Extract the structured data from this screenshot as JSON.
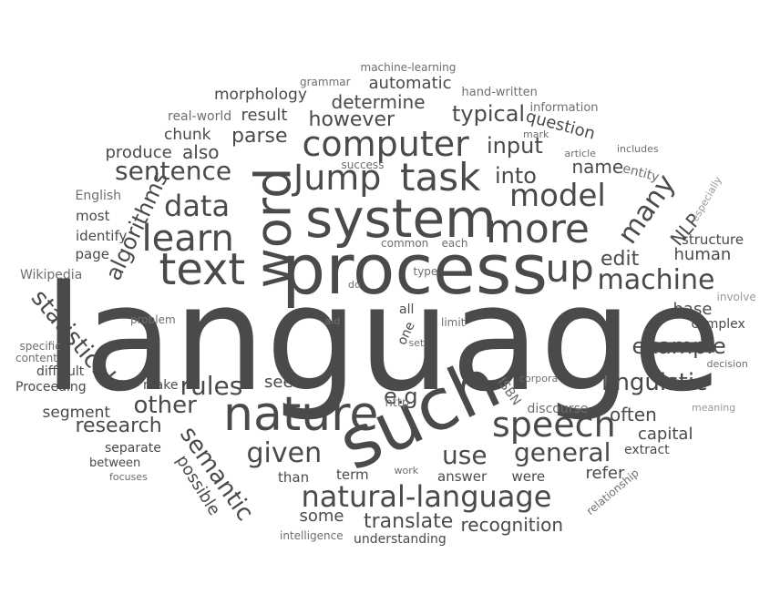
{
  "colors": {
    "background": "#ffffff",
    "dark": "#4a4a4a",
    "mid": "#6e6e6e",
    "light": "#999999"
  },
  "words": [
    "language",
    "process",
    "system",
    "such",
    "word",
    "nature",
    "speech",
    "text",
    "computer",
    "task",
    "Jump",
    "more",
    "learn",
    "model",
    "natural-language",
    "data",
    "up",
    "sentence",
    "machine",
    "many",
    "statistical",
    "semantic",
    "linguistic",
    "given",
    "general",
    "rules",
    "other",
    "input",
    "into",
    "use",
    "example",
    "algorithms",
    "e.g",
    "edit",
    "determine",
    "however",
    "typical",
    "parse",
    "also",
    "name",
    "translate",
    "recognition",
    "research",
    "question",
    "produce",
    "result",
    "often",
    "some",
    "human",
    "NLP",
    "refer",
    "automatic",
    "morphology",
    "possible",
    "base",
    "capital",
    "see",
    "chunk",
    "segment",
    "ISBN",
    "identify",
    "page",
    "structure",
    "most",
    "real-world",
    "hand-written",
    "information",
    "each",
    "common",
    "Wikipedia",
    "English",
    "mark",
    "success",
    "grammar",
    "machine-learning",
    "article",
    "includes",
    "entity",
    "especially",
    "type",
    "do",
    "all",
    "one",
    "aid",
    "set",
    "limit",
    "involve",
    "complex",
    "problem",
    "specific",
    "content",
    "difficult",
    "Proceeding",
    "decision",
    "corpora",
    "discourse",
    "meaning",
    "http",
    "make",
    "between",
    "separate",
    "focuses",
    "than",
    "term",
    "work",
    "answer",
    "were",
    "extract",
    "relationship",
    "intelligence",
    "understanding"
  ]
}
